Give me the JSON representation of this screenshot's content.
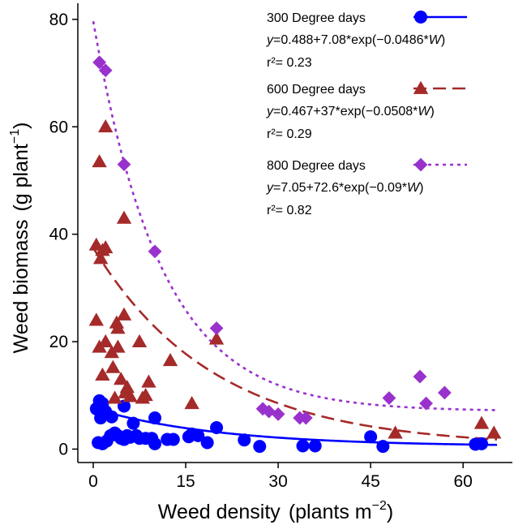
{
  "chart_data": {
    "type": "scatter",
    "xlabel": "Weed density",
    "xlabel_unit": "plants m",
    "xlabel_unit_sup": "−2",
    "ylabel": "Weed biomass",
    "ylabel_unit": "g plant",
    "ylabel_unit_sup": "−1",
    "xlim": [
      -2.5,
      68
    ],
    "ylim": [
      -2.5,
      83
    ],
    "x_ticks": [
      0,
      15,
      30,
      45,
      60
    ],
    "y_ticks": [
      0,
      20,
      40,
      60,
      80
    ],
    "grid": false,
    "legend_position": "top-right",
    "series": [
      {
        "name": "300 Degree days",
        "equation": "y=0.488+7.08*exp(−0.0486*W)",
        "eq_var_y": "y",
        "eq_body1": "=0.488+7.08*exp(−0.0486*",
        "eq_var_w": "W",
        "eq_close": ")",
        "r2_label": "r²= 0.23",
        "color": "#0000ff",
        "marker": "circle",
        "line_style": "solid",
        "curve": {
          "a": 0.488,
          "b": 7.08,
          "c": 0.0486
        },
        "points": [
          [
            0.5,
            7.5
          ],
          [
            1.0,
            9.0
          ],
          [
            1.5,
            8.5
          ],
          [
            2.0,
            7.0
          ],
          [
            1.2,
            5.8
          ],
          [
            0.8,
            1.2
          ],
          [
            1.5,
            1.0
          ],
          [
            2.2,
            1.5
          ],
          [
            2.8,
            2.5
          ],
          [
            3.0,
            6.0
          ],
          [
            3.5,
            3.0
          ],
          [
            4.0,
            2.5
          ],
          [
            4.5,
            2.0
          ],
          [
            5.0,
            1.8
          ],
          [
            5.0,
            8.0
          ],
          [
            5.5,
            2.5
          ],
          [
            6.0,
            2.2
          ],
          [
            6.5,
            4.8
          ],
          [
            7.0,
            2.5
          ],
          [
            7.5,
            2.0
          ],
          [
            8.5,
            2.0
          ],
          [
            9.5,
            2.0
          ],
          [
            10.0,
            1.0
          ],
          [
            10.0,
            5.8
          ],
          [
            12.0,
            1.8
          ],
          [
            13.0,
            1.8
          ],
          [
            15.5,
            2.3
          ],
          [
            16.0,
            2.8
          ],
          [
            17.0,
            2.5
          ],
          [
            18.5,
            1.2
          ],
          [
            20.0,
            4.0
          ],
          [
            24.5,
            1.7
          ],
          [
            27.0,
            0.5
          ],
          [
            34.0,
            0.6
          ],
          [
            36.0,
            0.6
          ],
          [
            45.0,
            2.3
          ],
          [
            47.0,
            0.5
          ],
          [
            62.0,
            0.9
          ],
          [
            63.0,
            1.0
          ]
        ]
      },
      {
        "name": "600 Degree days",
        "equation": "y=0.467+37*exp(−0.0508*W)",
        "eq_var_y": "y",
        "eq_body1": "=0.467+37*exp(−0.0508*",
        "eq_var_w": "W",
        "eq_close": ")",
        "r2_label": "r²= 0.29",
        "color": "#a52a2a",
        "marker": "triangle",
        "line_style": "dashed",
        "curve": {
          "a": 0.467,
          "b": 37,
          "c": 0.0508
        },
        "points": [
          [
            1.0,
            53.5
          ],
          [
            2.0,
            60.0
          ],
          [
            0.5,
            38.0
          ],
          [
            1.5,
            37.0
          ],
          [
            2.0,
            37.5
          ],
          [
            1.2,
            35.5
          ],
          [
            0.5,
            24.0
          ],
          [
            1.0,
            19.0
          ],
          [
            1.5,
            13.8
          ],
          [
            2.0,
            20.0
          ],
          [
            3.0,
            18.0
          ],
          [
            3.2,
            15.2
          ],
          [
            3.5,
            9.5
          ],
          [
            3.8,
            23.5
          ],
          [
            4.0,
            22.5
          ],
          [
            4.0,
            19.0
          ],
          [
            4.5,
            13.0
          ],
          [
            5.0,
            25.0
          ],
          [
            5.0,
            43.0
          ],
          [
            5.2,
            10.5
          ],
          [
            5.5,
            11.5
          ],
          [
            6.0,
            9.8
          ],
          [
            7.5,
            20.0
          ],
          [
            8.0,
            9.5
          ],
          [
            8.5,
            10.0
          ],
          [
            9.0,
            12.5
          ],
          [
            12.5,
            16.5
          ],
          [
            16.0,
            8.5
          ],
          [
            20.0,
            20.5
          ],
          [
            49.0,
            3.0
          ],
          [
            63.0,
            4.8
          ],
          [
            65.0,
            3.0
          ]
        ]
      },
      {
        "name": "800 Degree days",
        "equation": "y=7.05+72.6*exp(−0.09*W)",
        "eq_var_y": "y",
        "eq_body1": "=7.05+72.6*exp(−0.09*",
        "eq_var_w": "W",
        "eq_close": ")",
        "r2_label": "r²= 0.82",
        "color": "#9932cc",
        "marker": "diamond",
        "line_style": "dotted",
        "curve": {
          "a": 7.05,
          "b": 72.6,
          "c": 0.09
        },
        "points": [
          [
            1.0,
            72.0
          ],
          [
            2.0,
            70.5
          ],
          [
            5.0,
            53.0
          ],
          [
            10.0,
            36.8
          ],
          [
            20.0,
            22.5
          ],
          [
            27.5,
            7.5
          ],
          [
            28.5,
            7.0
          ],
          [
            30.0,
            6.5
          ],
          [
            33.5,
            5.8
          ],
          [
            34.5,
            5.8
          ],
          [
            48.0,
            9.5
          ],
          [
            53.0,
            13.5
          ],
          [
            54.0,
            8.5
          ],
          [
            57.0,
            10.5
          ]
        ]
      }
    ]
  }
}
